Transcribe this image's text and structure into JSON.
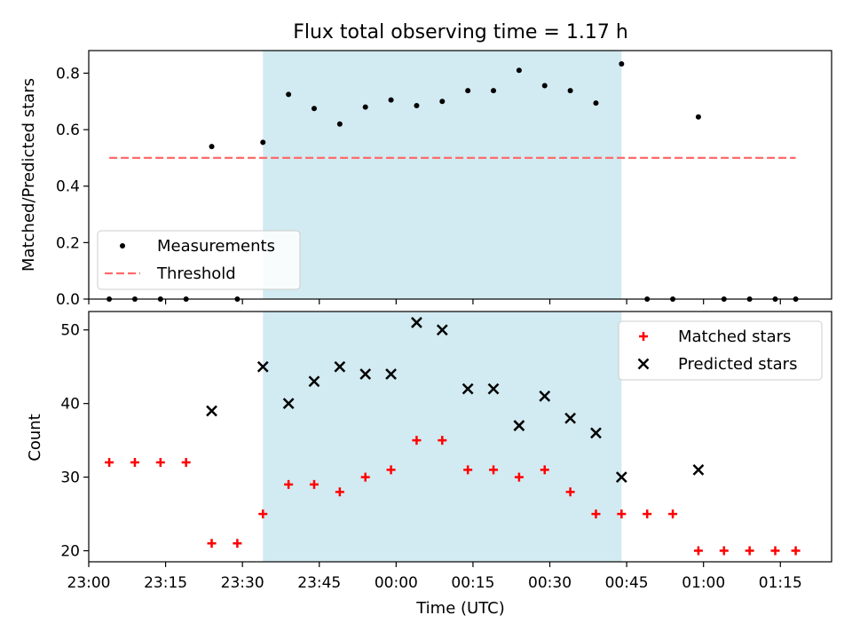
{
  "chart_data": {
    "type": "scatter",
    "title": "Flux total observing time = 1.17 h",
    "xlabel": "Time (UTC)",
    "x_ticks": [
      "23:00",
      "23:15",
      "23:30",
      "23:45",
      "00:00",
      "00:15",
      "00:30",
      "00:45",
      "01:00",
      "01:15"
    ],
    "x_range": [
      "23:00",
      "01:25"
    ],
    "shaded_interval": [
      "23:34",
      "00:44"
    ],
    "colors": {
      "shade": "#add8e6",
      "matched": "#ff0000",
      "predicted": "#000000",
      "threshold": "#ff6b6b",
      "measurements": "#000000"
    },
    "panels": [
      {
        "ylabel": "Matched/Predicted stars",
        "ylim": [
          0,
          0.88
        ],
        "y_ticks": [
          "0.0",
          "0.2",
          "0.4",
          "0.6",
          "0.8"
        ],
        "legend": {
          "position": "bottom-left",
          "entries": [
            {
              "label": "Measurements",
              "marker": "dot"
            },
            {
              "label": "Threshold",
              "marker": "dashed-line"
            }
          ]
        },
        "threshold": {
          "name": "Threshold",
          "value": 0.5,
          "x": [
            "23:04",
            "01:18"
          ]
        },
        "series": [
          {
            "name": "Measurements",
            "points": [
              [
                "23:04",
                0.0
              ],
              [
                "23:09",
                0.0
              ],
              [
                "23:14",
                0.0
              ],
              [
                "23:19",
                0.0
              ],
              [
                "23:24",
                0.54
              ],
              [
                "23:29",
                0.0
              ],
              [
                "23:34",
                0.555
              ],
              [
                "23:39",
                0.725
              ],
              [
                "23:44",
                0.675
              ],
              [
                "23:49",
                0.62
              ],
              [
                "23:54",
                0.68
              ],
              [
                "23:59",
                0.705
              ],
              [
                "00:04",
                0.685
              ],
              [
                "00:09",
                0.7
              ],
              [
                "00:14",
                0.738
              ],
              [
                "00:19",
                0.738
              ],
              [
                "00:24",
                0.81
              ],
              [
                "00:29",
                0.756
              ],
              [
                "00:34",
                0.738
              ],
              [
                "00:39",
                0.694
              ],
              [
                "00:44",
                0.833
              ],
              [
                "00:49",
                0.0
              ],
              [
                "00:54",
                0.0
              ],
              [
                "00:59",
                0.645
              ],
              [
                "01:04",
                0.0
              ],
              [
                "01:09",
                0.0
              ],
              [
                "01:14",
                0.0
              ],
              [
                "01:18",
                0.0
              ]
            ]
          }
        ]
      },
      {
        "ylabel": "Count",
        "ylim": [
          18.5,
          52.5
        ],
        "y_ticks": [
          "20",
          "30",
          "40",
          "50"
        ],
        "legend": {
          "position": "top-right",
          "entries": [
            {
              "label": "Matched stars",
              "marker": "plus"
            },
            {
              "label": "Predicted stars",
              "marker": "x"
            }
          ]
        },
        "series": [
          {
            "name": "Matched stars",
            "points": [
              [
                "23:04",
                32
              ],
              [
                "23:09",
                32
              ],
              [
                "23:14",
                32
              ],
              [
                "23:19",
                32
              ],
              [
                "23:24",
                21
              ],
              [
                "23:29",
                21
              ],
              [
                "23:34",
                25
              ],
              [
                "23:39",
                29
              ],
              [
                "23:44",
                29
              ],
              [
                "23:49",
                28
              ],
              [
                "23:54",
                30
              ],
              [
                "23:59",
                31
              ],
              [
                "00:04",
                35
              ],
              [
                "00:09",
                35
              ],
              [
                "00:14",
                31
              ],
              [
                "00:19",
                31
              ],
              [
                "00:24",
                30
              ],
              [
                "00:29",
                31
              ],
              [
                "00:34",
                28
              ],
              [
                "00:39",
                25
              ],
              [
                "00:44",
                25
              ],
              [
                "00:49",
                25
              ],
              [
                "00:54",
                25
              ],
              [
                "00:59",
                20
              ],
              [
                "01:04",
                20
              ],
              [
                "01:09",
                20
              ],
              [
                "01:14",
                20
              ],
              [
                "01:18",
                20
              ]
            ]
          },
          {
            "name": "Predicted stars",
            "points": [
              [
                "23:24",
                39
              ],
              [
                "23:34",
                45
              ],
              [
                "23:39",
                40
              ],
              [
                "23:44",
                43
              ],
              [
                "23:49",
                45
              ],
              [
                "23:54",
                44
              ],
              [
                "23:59",
                44
              ],
              [
                "00:04",
                51
              ],
              [
                "00:09",
                50
              ],
              [
                "00:14",
                42
              ],
              [
                "00:19",
                42
              ],
              [
                "00:24",
                37
              ],
              [
                "00:29",
                41
              ],
              [
                "00:34",
                38
              ],
              [
                "00:39",
                36
              ],
              [
                "00:44",
                30
              ],
              [
                "00:59",
                31
              ]
            ]
          }
        ]
      }
    ]
  }
}
